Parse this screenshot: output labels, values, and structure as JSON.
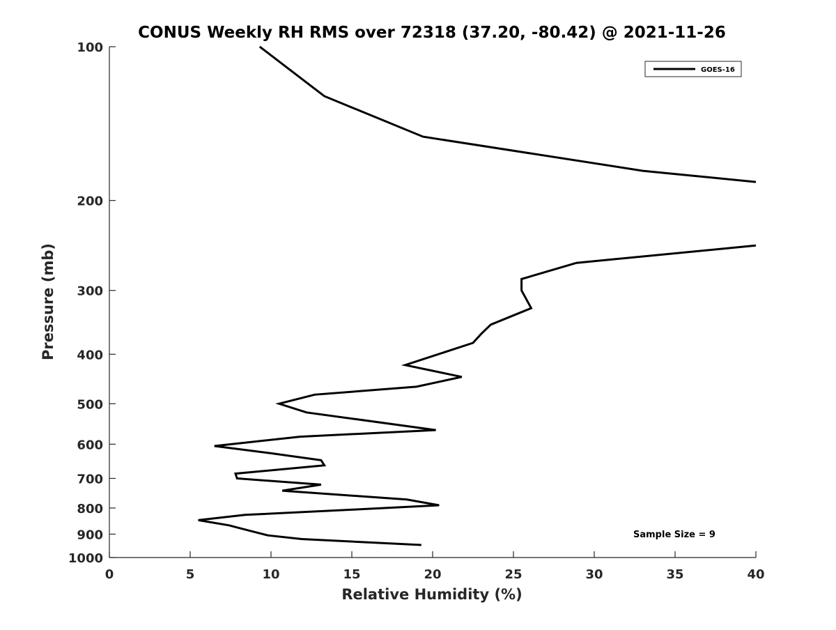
{
  "chart_data": {
    "type": "line",
    "title": "CONUS Weekly RH RMS over 72318 (37.20, -80.42) @ 2021-11-26",
    "xlabel": "Relative Humidity (%)",
    "ylabel": "Pressure (mb)",
    "xlim": [
      0,
      40
    ],
    "ylim": [
      100,
      1000
    ],
    "y_scale": "log",
    "y_reversed": true,
    "grid": false,
    "legend_position": "top-right",
    "x_ticks": [
      "0",
      "5",
      "10",
      "15",
      "20",
      "25",
      "30",
      "35",
      "40"
    ],
    "y_ticks": [
      {
        "value": 100,
        "label": "100"
      },
      {
        "value": 200,
        "label": "200"
      },
      {
        "value": 300,
        "label": "300"
      },
      {
        "value": 400,
        "label": "400"
      },
      {
        "value": 500,
        "label": "500"
      },
      {
        "value": 600,
        "label": "600"
      },
      {
        "value": 700,
        "label": "700"
      },
      {
        "value": 800,
        "label": "800"
      },
      {
        "value": 900,
        "label": "900"
      },
      {
        "value": 1000,
        "label": "1000"
      }
    ],
    "series": [
      {
        "name": "GOES-16",
        "color": "#000000",
        "segments": [
          [
            [
              9.3,
              100
            ],
            [
              13.3,
              125
            ],
            [
              19.4,
              150
            ],
            [
              33.0,
              175
            ],
            [
              40.0,
              184
            ]
          ],
          [
            [
              40.0,
              245
            ],
            [
              28.9,
              265
            ],
            [
              25.5,
              285
            ],
            [
              25.5,
              300
            ],
            [
              26.1,
              325
            ],
            [
              23.6,
              350
            ],
            [
              23.0,
              365
            ],
            [
              22.5,
              380
            ],
            [
              18.3,
              420
            ],
            [
              21.8,
              443
            ],
            [
              19.0,
              463
            ],
            [
              12.7,
              480
            ],
            [
              10.5,
              500
            ],
            [
              12.2,
              520
            ],
            [
              20.2,
              563
            ],
            [
              11.8,
              580
            ],
            [
              6.5,
              605
            ],
            [
              10.0,
              625
            ],
            [
              13.1,
              645
            ],
            [
              13.3,
              660
            ],
            [
              7.8,
              685
            ],
            [
              7.9,
              700
            ],
            [
              13.1,
              720
            ],
            [
              10.7,
              740
            ],
            [
              18.4,
              770
            ],
            [
              20.4,
              790
            ],
            [
              15.4,
              805
            ],
            [
              8.4,
              825
            ],
            [
              5.5,
              845
            ],
            [
              7.4,
              865
            ],
            [
              8.6,
              885
            ],
            [
              9.8,
              905
            ],
            [
              11.9,
              920
            ],
            [
              19.3,
              945
            ]
          ]
        ]
      }
    ],
    "legend": [
      {
        "label": "GOES-16",
        "color": "#000000"
      }
    ],
    "annotations": [
      {
        "text": "Sample Size = 9"
      }
    ]
  }
}
